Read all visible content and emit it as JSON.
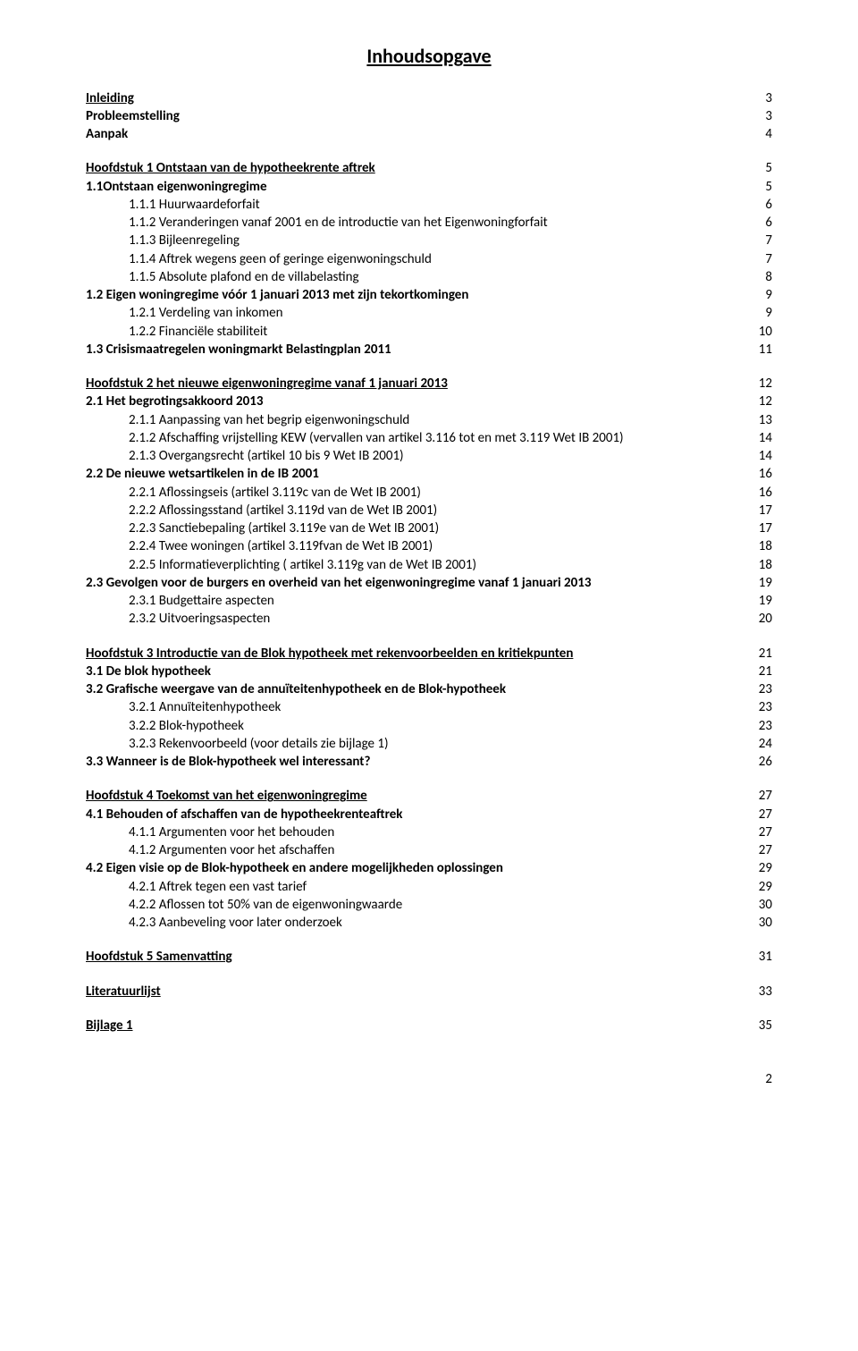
{
  "title": "Inhoudsopgave",
  "page_footer": "2",
  "blocks": [
    {
      "rows": [
        {
          "label": "Inleiding",
          "page": "3",
          "bold": true,
          "underline": true
        },
        {
          "label": "Probleemstelling",
          "page": "3",
          "bold": true
        },
        {
          "label": "Aanpak",
          "page": "4",
          "bold": true
        }
      ]
    },
    {
      "rows": [
        {
          "label": "Hoofdstuk 1 Ontstaan van de hypotheekrente aftrek",
          "page": "5",
          "bold": true,
          "underline": true
        },
        {
          "label": "1.1Ontstaan eigenwoningregime",
          "page": "5",
          "bold": true
        },
        {
          "label": "1.1.1 Huurwaardeforfait",
          "page": "6",
          "indent": 1
        },
        {
          "label": "1.1.2 Veranderingen vanaf 2001 en de introductie van het Eigenwoningforfait",
          "page": "6",
          "indent": 1
        },
        {
          "label": "1.1.3 Bijleenregeling",
          "page": "7",
          "indent": 1
        },
        {
          "label": "1.1.4 Aftrek wegens geen of geringe eigenwoningschuld",
          "page": "7",
          "indent": 1
        },
        {
          "label": "1.1.5 Absolute plafond en de villabelasting",
          "page": "8",
          "indent": 1
        },
        {
          "label": "1.2 Eigen woningregime vóór 1 januari 2013 met zijn tekortkomingen",
          "page": "9",
          "bold": true
        },
        {
          "label": "1.2.1 Verdeling van inkomen",
          "page": "9",
          "indent": 1
        },
        {
          "label": "1.2.2 Financiële stabiliteit",
          "page": "10",
          "indent": 1
        },
        {
          "label": "1.3 Crisismaatregelen woningmarkt Belastingplan 2011",
          "page": "11",
          "bold": true
        }
      ]
    },
    {
      "rows": [
        {
          "label": "Hoofdstuk 2 het nieuwe eigenwoningregime vanaf 1 januari 2013",
          "page": "12",
          "bold": true,
          "underline": true
        },
        {
          "label": "2.1 Het begrotingsakkoord 2013",
          "page": "12",
          "bold": true
        },
        {
          "label": "2.1.1 Aanpassing van het begrip eigenwoningschuld",
          "page": "13",
          "indent": 1
        },
        {
          "label": "2.1.2 Afschaffing vrijstelling KEW (vervallen van artikel 3.116 tot en met 3.119 Wet IB 2001)",
          "page": "14",
          "indent": 1
        },
        {
          "label": "2.1.3 Overgangsrecht (artikel 10 bis 9 Wet IB 2001)",
          "page": "14",
          "indent": 1
        },
        {
          "label": "2.2 De nieuwe wetsartikelen in de IB 2001",
          "page": "16",
          "bold": true
        },
        {
          "label": "2.2.1 Aflossingseis (artikel 3.119c van de Wet IB 2001)",
          "page": "16",
          "indent": 1
        },
        {
          "label": "2.2.2 Aflossingsstand (artikel 3.119d van de Wet IB 2001)",
          "page": "17",
          "indent": 1
        },
        {
          "label": "2.2.3 Sanctiebepaling (artikel 3.119e van de Wet IB 2001)",
          "page": "17",
          "indent": 1
        },
        {
          "label": "2.2.4 Twee woningen (artikel 3.119fvan de Wet IB 2001)",
          "page": "18",
          "indent": 1
        },
        {
          "label": "2.2.5 Informatieverplichting ( artikel 3.119g van de Wet IB 2001)",
          "page": "18",
          "indent": 1
        },
        {
          "label": "2.3 Gevolgen voor de burgers en overheid van het eigenwoningregime vanaf 1 januari 2013",
          "page": "19",
          "bold": true
        },
        {
          "label": "2.3.1 Budgettaire aspecten",
          "page": "19",
          "indent": 1
        },
        {
          "label": "2.3.2 Uitvoeringsaspecten",
          "page": "20",
          "indent": 1
        }
      ]
    },
    {
      "rows": [
        {
          "label": "Hoofdstuk 3 Introductie van de Blok hypotheek met rekenvoorbeelden en kritiekpunten",
          "page": "21",
          "bold": true,
          "underline": true
        },
        {
          "label": "3.1 De blok hypotheek",
          "page": "21",
          "bold": true
        },
        {
          "label": "3.2 Grafische weergave van de annuïteitenhypotheek en de Blok-hypotheek",
          "page": "23",
          "bold": true
        },
        {
          "label": "3.2.1 Annuïteitenhypotheek",
          "page": "23",
          "indent": 1
        },
        {
          "label": "3.2.2 Blok-hypotheek",
          "page": "23",
          "indent": 1
        },
        {
          "label": "3.2.3 Rekenvoorbeeld (voor details zie bijlage 1)",
          "page": "24",
          "indent": 1
        },
        {
          "label": "3.3 Wanneer is de Blok-hypotheek wel interessant?",
          "page": "26",
          "bold": true
        }
      ]
    },
    {
      "rows": [
        {
          "label": "Hoofdstuk 4 Toekomst van het eigenwoningregime",
          "page": "27",
          "bold": true,
          "underline": true
        },
        {
          "label": "4.1 Behouden of afschaffen van de hypotheekrenteaftrek",
          "page": "27",
          "bold": true
        },
        {
          "label": "4.1.1 Argumenten voor het behouden",
          "page": "27",
          "indent": 1
        },
        {
          "label": "4.1.2 Argumenten voor het afschaffen",
          "page": "27",
          "indent": 1
        },
        {
          "label": "4.2 Eigen visie op de Blok-hypotheek en andere mogelijkheden oplossingen",
          "page": "29",
          "bold": true
        },
        {
          "label": "4.2.1 Aftrek tegen een vast tarief",
          "page": "29",
          "indent": 1
        },
        {
          "label": "4.2.2 Aflossen tot 50% van de eigenwoningwaarde",
          "page": "30",
          "indent": 1
        },
        {
          "label": "4.2.3 Aanbeveling voor later onderzoek",
          "page": "30",
          "indent": 1
        }
      ]
    },
    {
      "rows": [
        {
          "label": "Hoofdstuk 5 Samenvatting",
          "page": "31",
          "bold": true,
          "underline": true
        }
      ]
    },
    {
      "rows": [
        {
          "label": "Literatuurlijst",
          "page": "33",
          "bold": true,
          "underline": true
        }
      ]
    },
    {
      "rows": [
        {
          "label": "Bijlage 1",
          "page": "35",
          "bold": true,
          "underline": true
        }
      ]
    }
  ]
}
